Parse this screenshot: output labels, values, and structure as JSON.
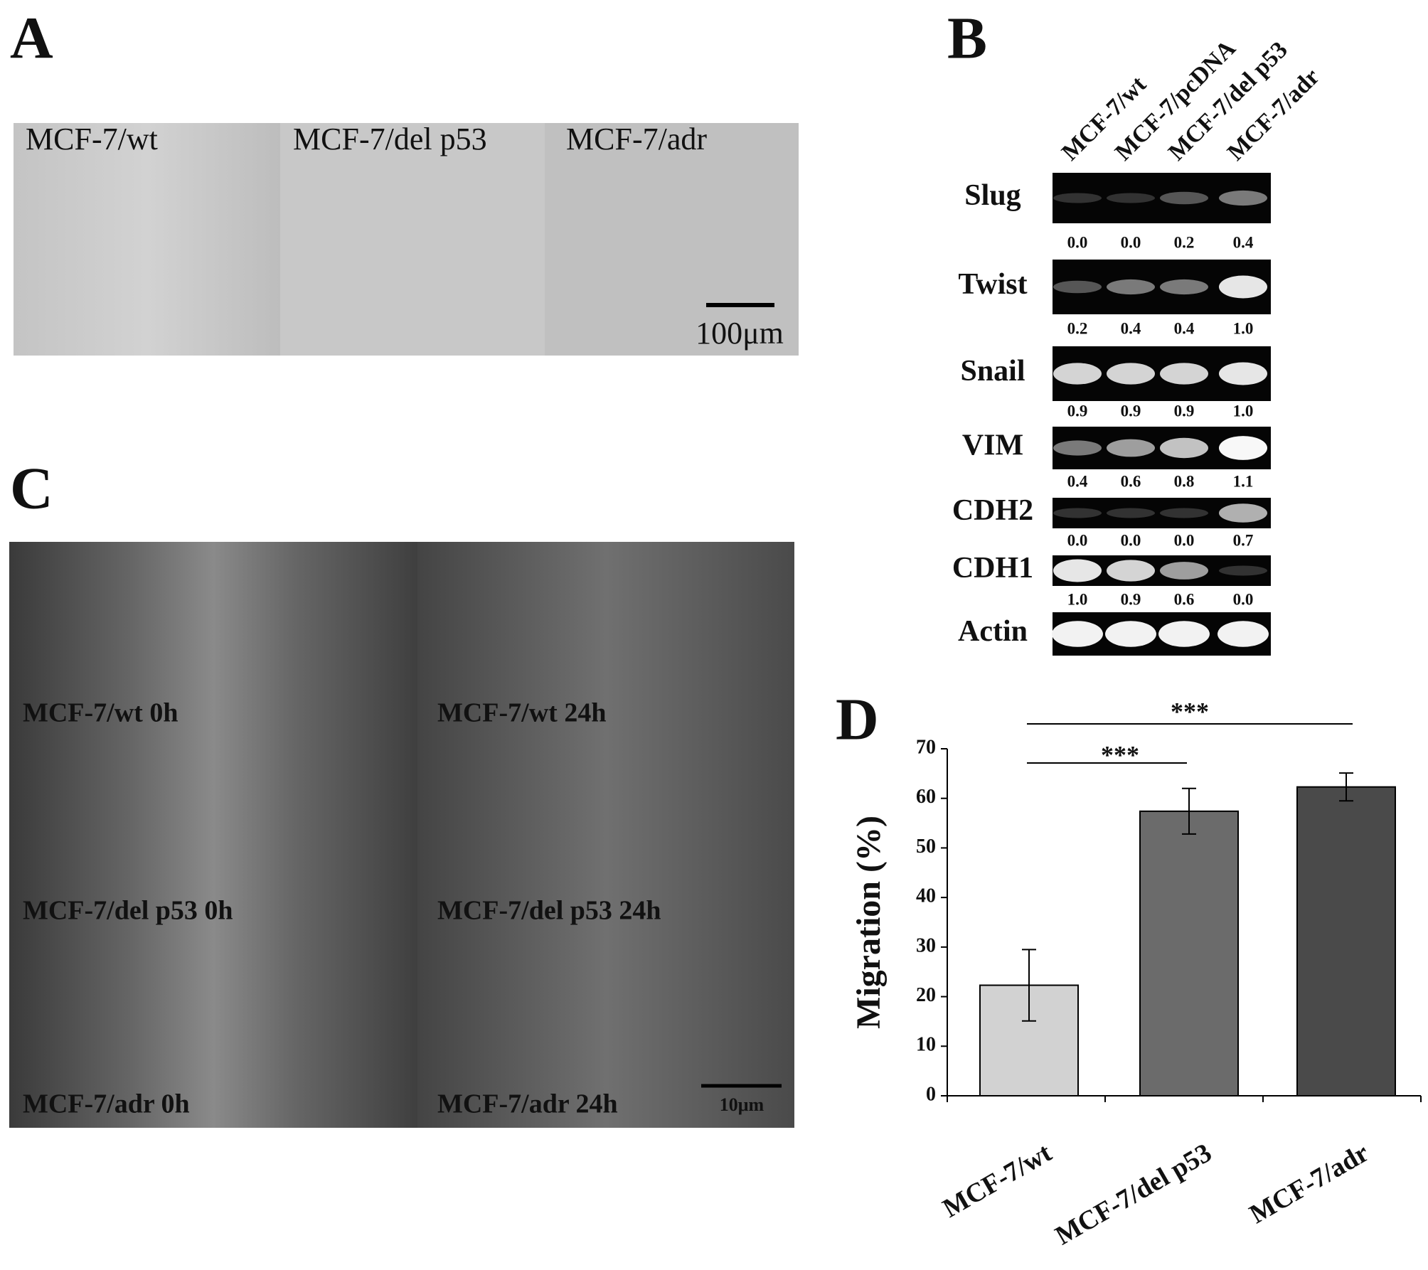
{
  "panel_a": {
    "label": "A",
    "captions": [
      "MCF-7/wt",
      "MCF-7/del p53",
      "MCF-7/adr"
    ],
    "scale_bar": "100μm"
  },
  "panel_b": {
    "label": "B",
    "lanes": [
      "MCF-7/wt",
      "MCF-7/pcDNA",
      "MCF-7/del p53",
      "MCF-7/adr"
    ],
    "genes": [
      {
        "name": "Slug",
        "values": [
          0,
          0,
          0.2,
          0.4
        ],
        "value_labels": [
          "0.0",
          "0.0",
          "0.2",
          "0.4"
        ]
      },
      {
        "name": "Twist",
        "values": [
          0.2,
          0.4,
          0.4,
          1
        ],
        "value_labels": [
          "0.2",
          "0.4",
          "0.4",
          "1.0"
        ]
      },
      {
        "name": "Snail",
        "values": [
          0.9,
          0.9,
          0.9,
          1
        ],
        "value_labels": [
          "0.9",
          "0.9",
          "0.9",
          "1.0"
        ]
      },
      {
        "name": "VIM",
        "values": [
          0.4,
          0.6,
          0.8,
          1.1
        ]
      },
      {
        "name": "CDH2",
        "values": [
          0,
          0,
          0,
          0.7
        ],
        "value_labels": [
          "0.0",
          "0.0",
          "0.0",
          "0.7"
        ]
      },
      {
        "name": "CDH1",
        "values": [
          1,
          0.9,
          0.6,
          0
        ],
        "value_labels": [
          "1.0",
          "0.9",
          "0.6",
          "0.0"
        ]
      },
      {
        "name": "Actin"
      }
    ]
  },
  "panel_c": {
    "label": "C",
    "captions": [
      [
        "MCF-7/wt 0h",
        "MCF-7/wt 24h"
      ],
      [
        "MCF-7/del p53 0h",
        "MCF-7/del p53 24h"
      ],
      [
        "MCF-7/adr 0h",
        "MCF-7/adr 24h"
      ]
    ],
    "scale_bar": "10μm"
  },
  "chart_data": {
    "type": "bar",
    "label": "D",
    "categories": [
      "MCF-7/wt",
      "MCF-7/del p53",
      "MCF-7/adr"
    ],
    "values": [
      22.3,
      57.4,
      62.3
    ],
    "errors": [
      7.2,
      4.6,
      2.8
    ],
    "colors": [
      "#d2d2d2",
      "#6b6b6b",
      "#4a4a4a"
    ],
    "ylabel": "Migration (%)",
    "ylim": [
      0,
      70
    ],
    "yticks": [
      0,
      10,
      20,
      30,
      40,
      50,
      60,
      70
    ],
    "annotations": [
      "***",
      "***"
    ]
  }
}
